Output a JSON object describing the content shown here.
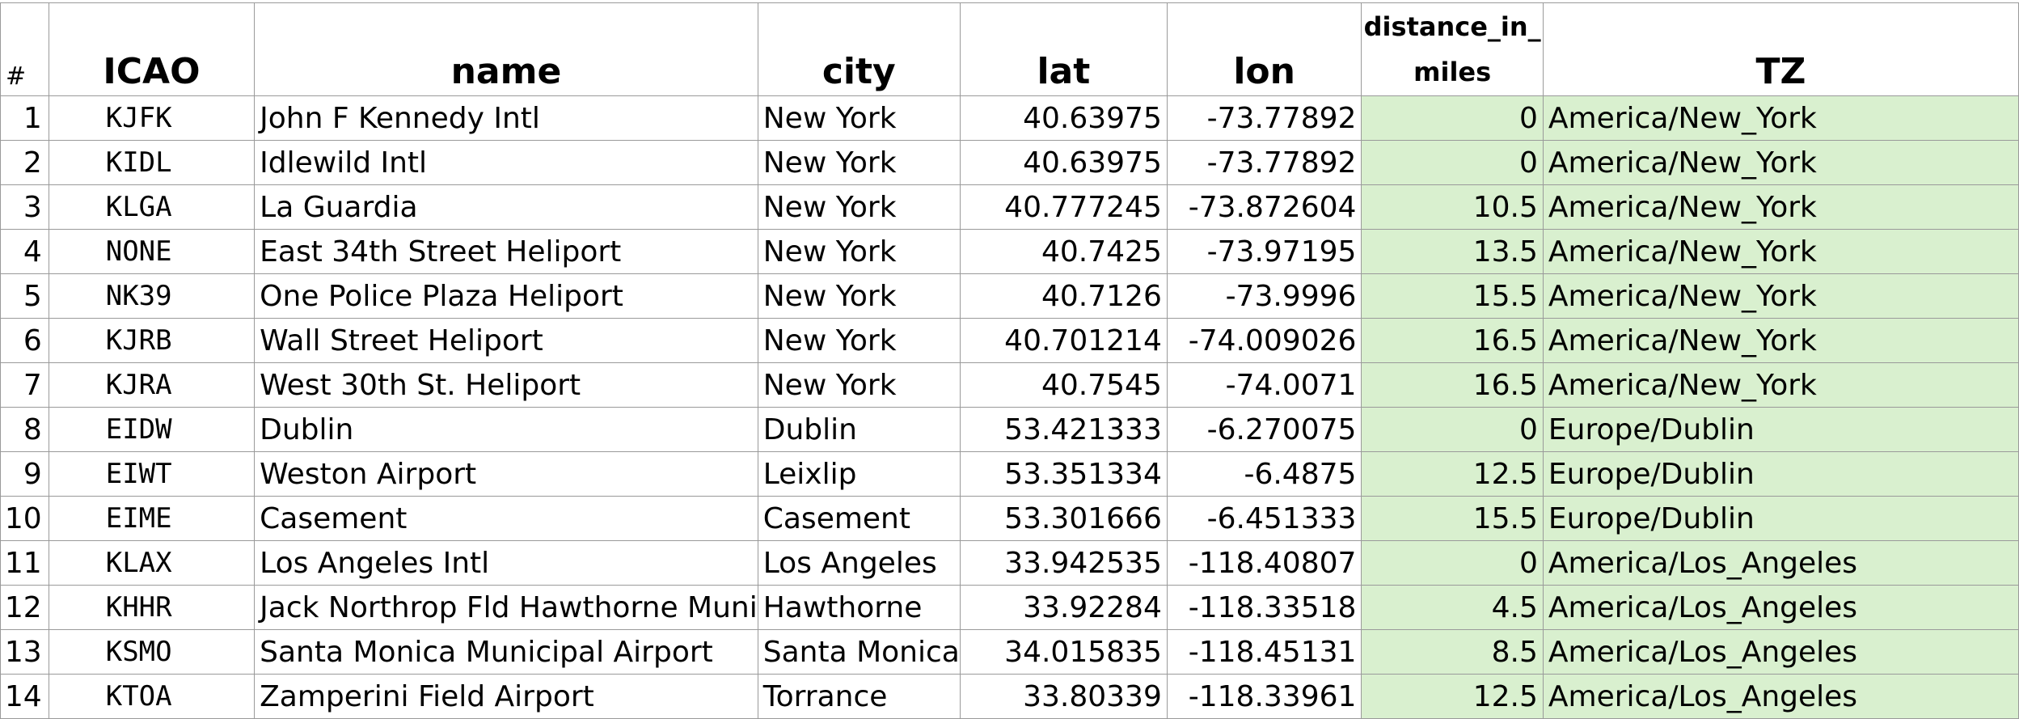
{
  "columns": {
    "rownum": "#",
    "icao": "ICAO",
    "name": "name",
    "city": "city",
    "lat": "lat",
    "lon": "lon",
    "distance": "distance_in_miles",
    "tz": "TZ"
  },
  "highlight_color": "#d9f0cf",
  "rows": [
    {
      "n": "1",
      "icao": "KJFK",
      "name": "John F Kennedy Intl",
      "city": "New York",
      "lat": "40.63975",
      "lon": "-73.77892",
      "distance": "0",
      "tz": "America/New_York"
    },
    {
      "n": "2",
      "icao": "KIDL",
      "name": "Idlewild Intl",
      "city": "New York",
      "lat": "40.63975",
      "lon": "-73.77892",
      "distance": "0",
      "tz": "America/New_York"
    },
    {
      "n": "3",
      "icao": "KLGA",
      "name": "La Guardia",
      "city": "New York",
      "lat": "40.777245",
      "lon": "-73.872604",
      "distance": "10.5",
      "tz": "America/New_York"
    },
    {
      "n": "4",
      "icao": "NONE",
      "name": "East 34th Street Heliport",
      "city": "New York",
      "lat": "40.7425",
      "lon": "-73.97195",
      "distance": "13.5",
      "tz": "America/New_York"
    },
    {
      "n": "5",
      "icao": "NK39",
      "name": "One Police Plaza Heliport",
      "city": "New York",
      "lat": "40.7126",
      "lon": "-73.9996",
      "distance": "15.5",
      "tz": "America/New_York"
    },
    {
      "n": "6",
      "icao": "KJRB",
      "name": "Wall Street Heliport",
      "city": "New York",
      "lat": "40.701214",
      "lon": "-74.009026",
      "distance": "16.5",
      "tz": "America/New_York"
    },
    {
      "n": "7",
      "icao": "KJRA",
      "name": "West 30th St. Heliport",
      "city": "New York",
      "lat": "40.7545",
      "lon": "-74.0071",
      "distance": "16.5",
      "tz": "America/New_York"
    },
    {
      "n": "8",
      "icao": "EIDW",
      "name": "Dublin",
      "city": "Dublin",
      "lat": "53.421333",
      "lon": "-6.270075",
      "distance": "0",
      "tz": "Europe/Dublin"
    },
    {
      "n": "9",
      "icao": "EIWT",
      "name": "Weston Airport",
      "city": "Leixlip",
      "lat": "53.351334",
      "lon": "-6.4875",
      "distance": "12.5",
      "tz": "Europe/Dublin"
    },
    {
      "n": "10",
      "icao": "EIME",
      "name": "Casement",
      "city": "Casement",
      "lat": "53.301666",
      "lon": "-6.451333",
      "distance": "15.5",
      "tz": "Europe/Dublin"
    },
    {
      "n": "11",
      "icao": "KLAX",
      "name": "Los Angeles Intl",
      "city": "Los Angeles",
      "lat": "33.942535",
      "lon": "-118.40807",
      "distance": "0",
      "tz": "America/Los_Angeles"
    },
    {
      "n": "12",
      "icao": "KHHR",
      "name": "Jack Northrop Fld Hawthorne Muni",
      "city": "Hawthorne",
      "lat": "33.92284",
      "lon": "-118.33518",
      "distance": "4.5",
      "tz": "America/Los_Angeles"
    },
    {
      "n": "13",
      "icao": "KSMO",
      "name": "Santa Monica Municipal Airport",
      "city": "Santa Monica",
      "lat": "34.015835",
      "lon": "-118.45131",
      "distance": "8.5",
      "tz": "America/Los_Angeles"
    },
    {
      "n": "14",
      "icao": "KTOA",
      "name": "Zamperini Field Airport",
      "city": "Torrance",
      "lat": "33.80339",
      "lon": "-118.33961",
      "distance": "12.5",
      "tz": "America/Los_Angeles"
    }
  ]
}
